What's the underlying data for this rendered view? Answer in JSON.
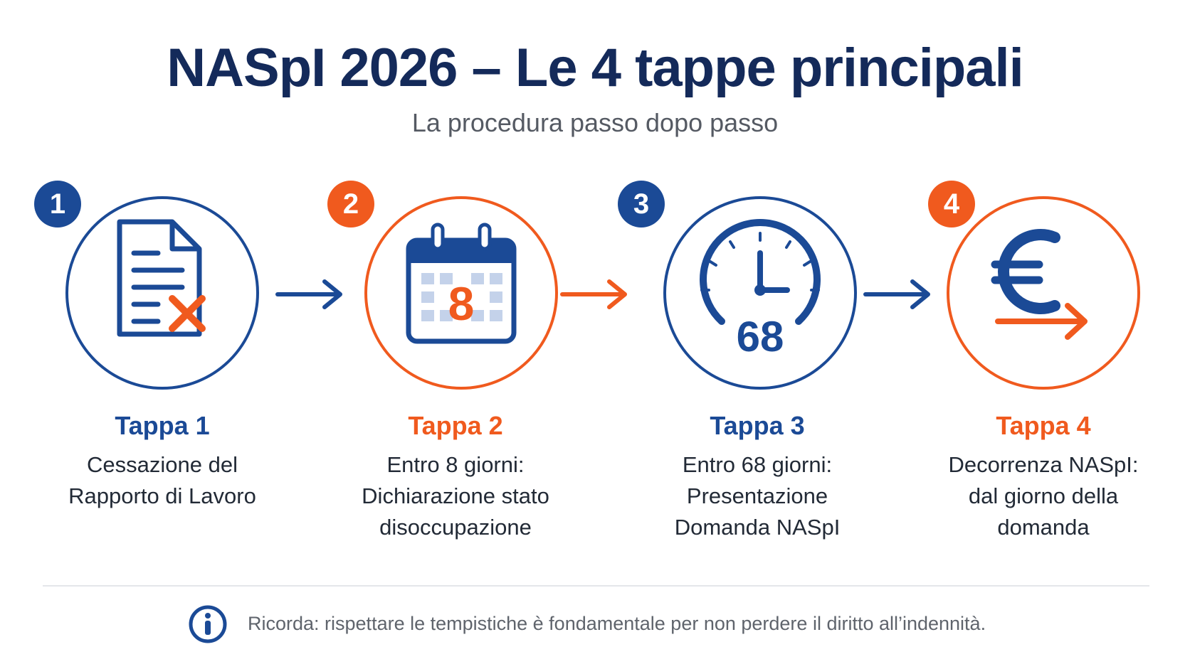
{
  "title": "NASpI 2026 – Le 4 tappe principali",
  "subtitle": "La procedura passo dopo passo",
  "colors": {
    "blue": "#1b4a96",
    "orange": "#f05a1e",
    "navy": "#142a5a"
  },
  "steps": [
    {
      "number": "1",
      "title": "Tappa 1",
      "description": "Cessazione del\nRapporto di Lavoro",
      "icon": "document-cancel-icon",
      "color": "blue"
    },
    {
      "number": "2",
      "title": "Tappa 2",
      "description": "Entro 8 giorni:\nDichiarazione stato\ndisoccupazione",
      "icon": "calendar-icon",
      "icon_text": "8",
      "color": "orange"
    },
    {
      "number": "3",
      "title": "Tappa 3",
      "description": "Entro 68 giorni:\nPresentazione\nDomanda NASpI",
      "icon": "clock-icon",
      "icon_text": "68",
      "color": "blue"
    },
    {
      "number": "4",
      "title": "Tappa 4",
      "description": "Decorrenza NASpI:\ndal giorno della\ndomanda",
      "icon": "euro-arrow-icon",
      "color": "orange"
    }
  ],
  "note": {
    "icon": "info-icon",
    "text": "Ricorda: rispettare le tempistiche è fondamentale per non perdere il diritto all’indennità."
  }
}
